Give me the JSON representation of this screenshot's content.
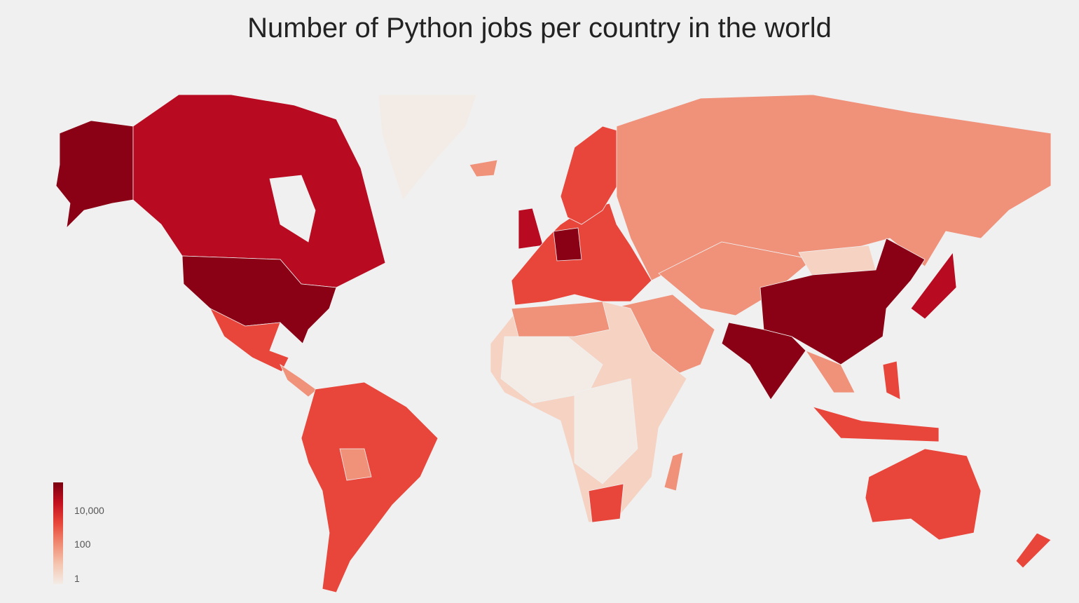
{
  "title": "Number of Python jobs per country in the world",
  "legend": {
    "labels": [
      "10,000",
      "100",
      "1"
    ],
    "scale": "log",
    "gradient": [
      "#f3ece6",
      "#f5c4ae",
      "#f08a72",
      "#e8463a",
      "#c3101f",
      "#7a0010"
    ]
  },
  "colors": {
    "background": "#f0f0f0",
    "level_1": "#f3ece6",
    "level_2": "#f5d2c2",
    "level_3": "#f0917a",
    "level_4": "#e8453b",
    "level_5": "#b80a20",
    "level_6": "#8a0014"
  }
}
